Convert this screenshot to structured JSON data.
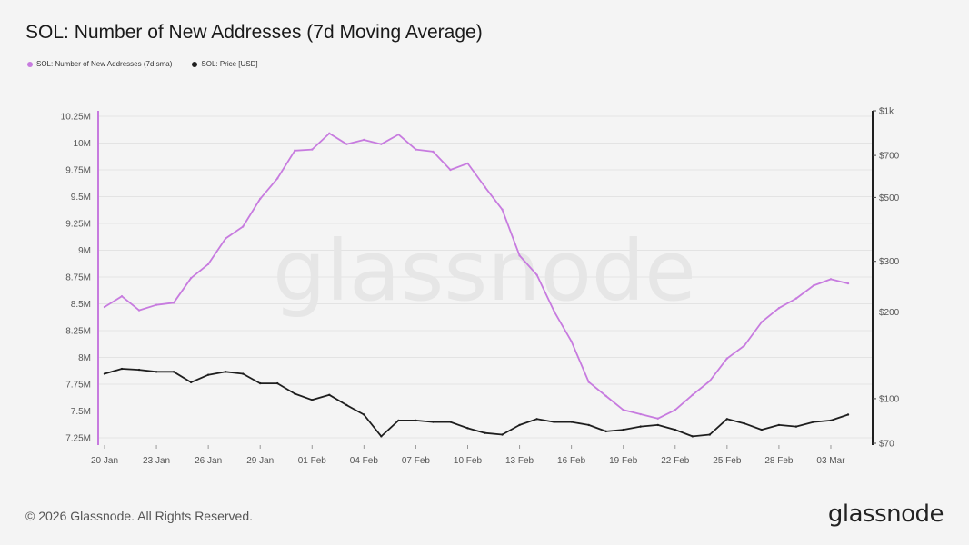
{
  "title": "SOL: Number of New Addresses (7d Moving Average)",
  "legend": {
    "series1": "SOL: Number of New Addresses (7d sma)",
    "series2": "SOL: Price [USD]"
  },
  "colors": {
    "addresses": "#c77bdf",
    "price": "#1e1e1e",
    "grid": "#e3e3e3",
    "watermark": "#e6e6e6"
  },
  "watermark": "glassnode",
  "footer": {
    "copyright": "© 2026 Glassnode. All Rights Reserved.",
    "brand": "glassnode"
  },
  "chart_data": {
    "type": "line",
    "title": "SOL: Number of New Addresses (7d Moving Average)",
    "x_tick_labels": [
      "20 Jan",
      "23 Jan",
      "26 Jan",
      "29 Jan",
      "01 Feb",
      "04 Feb",
      "07 Feb",
      "10 Feb",
      "13 Feb",
      "16 Feb",
      "19 Feb",
      "22 Feb",
      "25 Feb",
      "28 Feb",
      "03 Mar"
    ],
    "x_start": "20 Jan",
    "x_end": "04 Mar",
    "y_left": {
      "ticks": [
        "7.25M",
        "7.5M",
        "7.75M",
        "8M",
        "8.25M",
        "8.5M",
        "8.75M",
        "9M",
        "9.25M",
        "9.5M",
        "9.75M",
        "10M",
        "10.25M"
      ],
      "ylim": [
        7.25,
        10.25
      ],
      "unit": "M"
    },
    "y_right": {
      "scale": "log",
      "ticks": [
        "$70",
        "$100",
        "$200",
        "$300",
        "$500",
        "$700",
        "$1k"
      ],
      "tick_values": [
        70,
        100,
        200,
        300,
        500,
        700,
        1000
      ],
      "ylim": [
        70,
        1000
      ]
    },
    "series": [
      {
        "name": "SOL: Number of New Addresses (7d sma)",
        "axis": "left",
        "values": [
          8.47,
          8.57,
          8.44,
          8.49,
          8.51,
          8.74,
          8.87,
          9.11,
          9.22,
          9.48,
          9.67,
          9.93,
          9.94,
          10.09,
          9.99,
          10.03,
          9.99,
          10.08,
          9.94,
          9.92,
          9.75,
          9.81,
          9.59,
          9.38,
          8.95,
          8.77,
          8.43,
          8.15,
          7.77,
          7.64,
          7.51,
          7.47,
          7.43,
          7.51,
          7.65,
          7.78,
          7.99,
          8.11,
          8.33,
          8.46,
          8.55,
          8.67,
          8.73,
          8.69
        ]
      },
      {
        "name": "SOL: Price [USD]",
        "axis": "right",
        "values": [
          122,
          127,
          126,
          124,
          124,
          114,
          121,
          124,
          122,
          113,
          113,
          104,
          99,
          103,
          95,
          88,
          74,
          84,
          84,
          83,
          83,
          79,
          76,
          75,
          81,
          85,
          83,
          83,
          81,
          77,
          78,
          80,
          81,
          78,
          74,
          75,
          85,
          82,
          78,
          81,
          80,
          83,
          84,
          88
        ]
      }
    ],
    "grid": true,
    "legend_position": "top-left"
  }
}
